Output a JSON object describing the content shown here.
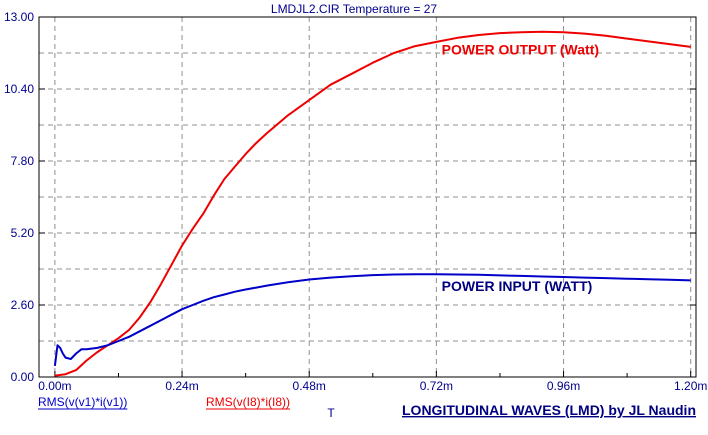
{
  "chart_data": {
    "type": "line",
    "title": "LMDJL2.CIR Temperature = 27",
    "xlabel": "T",
    "ylabel": "",
    "xlim": [
      -3e-05,
      0.00121
    ],
    "ylim": [
      0,
      13
    ],
    "x_ticks": [
      0,
      0.00024,
      0.00048,
      0.00072,
      0.00096,
      0.0012
    ],
    "x_tick_labels": [
      "0.00m",
      "0.24m",
      "0.48m",
      "0.72m",
      "0.96m",
      "1.20m"
    ],
    "y_ticks": [
      0,
      2.6,
      5.2,
      7.8,
      10.4,
      13.0
    ],
    "y_tick_labels": [
      "0.00",
      "2.60",
      "5.20",
      "7.80",
      "10.40",
      "13.00"
    ],
    "grid": true,
    "series": [
      {
        "name": "RMS(v(I8)*i(I8))",
        "color": "#ee0000",
        "x": [
          0,
          2e-05,
          4e-05,
          6e-05,
          8e-05,
          0.0001,
          0.00012,
          0.00014,
          0.00016,
          0.00018,
          0.0002,
          0.00022,
          0.00024,
          0.00026,
          0.00028,
          0.0003,
          0.00032,
          0.00034,
          0.00036,
          0.00038,
          0.0004,
          0.00044,
          0.00048,
          0.00052,
          0.00056,
          0.0006,
          0.00064,
          0.00068,
          0.00072,
          0.00076,
          0.0008,
          0.00084,
          0.00088,
          0.00092,
          0.00096,
          0.001,
          0.00104,
          0.00108,
          0.00112,
          0.00116,
          0.0012
        ],
        "values": [
          0.05,
          0.1,
          0.25,
          0.6,
          0.9,
          1.15,
          1.4,
          1.7,
          2.15,
          2.7,
          3.35,
          4.05,
          4.75,
          5.35,
          5.9,
          6.55,
          7.15,
          7.6,
          8.05,
          8.45,
          8.8,
          9.45,
          10.0,
          10.55,
          10.95,
          11.35,
          11.7,
          11.95,
          12.1,
          12.25,
          12.35,
          12.42,
          12.45,
          12.47,
          12.45,
          12.4,
          12.32,
          12.22,
          12.12,
          12.02,
          11.92
        ]
      },
      {
        "name": "RMS(v(v1)*i(v1))",
        "color": "#0000c8",
        "x": [
          0,
          5e-06,
          1e-05,
          1.5e-05,
          2e-05,
          3e-05,
          4e-05,
          5e-05,
          6e-05,
          8e-05,
          0.0001,
          0.00012,
          0.00014,
          0.00016,
          0.00018,
          0.0002,
          0.00022,
          0.00024,
          0.00026,
          0.00028,
          0.0003,
          0.00032,
          0.00034,
          0.00036,
          0.00038,
          0.0004,
          0.00044,
          0.00048,
          0.00052,
          0.00056,
          0.0006,
          0.00064,
          0.00068,
          0.00072,
          0.00076,
          0.0008,
          0.00084,
          0.00088,
          0.00092,
          0.00096,
          0.001,
          0.00104,
          0.00108,
          0.00112,
          0.00116,
          0.0012
        ],
        "values": [
          0.4,
          1.15,
          1.05,
          0.85,
          0.7,
          0.65,
          0.85,
          1.0,
          1.0,
          1.05,
          1.15,
          1.3,
          1.45,
          1.65,
          1.85,
          2.05,
          2.25,
          2.45,
          2.6,
          2.75,
          2.88,
          2.98,
          3.08,
          3.16,
          3.23,
          3.3,
          3.42,
          3.52,
          3.59,
          3.64,
          3.68,
          3.7,
          3.71,
          3.71,
          3.7,
          3.69,
          3.67,
          3.65,
          3.63,
          3.61,
          3.59,
          3.57,
          3.55,
          3.53,
          3.51,
          3.49
        ]
      }
    ],
    "annotations": [
      {
        "text": "POWER OUTPUT (Watt)",
        "color": "#ee0000",
        "x": 0.00073,
        "y": 11.65
      },
      {
        "text": "POWER INPUT (WATT)",
        "color": "#000080",
        "x": 0.00073,
        "y": 3.1
      }
    ],
    "legend": [
      {
        "text": "RMS(v(v1)*i(v1))",
        "color": "#0000c8"
      },
      {
        "text": "RMS(v(I8)*i(I8))",
        "color": "#ee0000"
      }
    ],
    "footer": "LONGITUDINAL WAVES (LMD) by JL Naudin",
    "colors": {
      "axis_text": "#00008b",
      "grid": "#909090",
      "footer": "#000080"
    }
  }
}
